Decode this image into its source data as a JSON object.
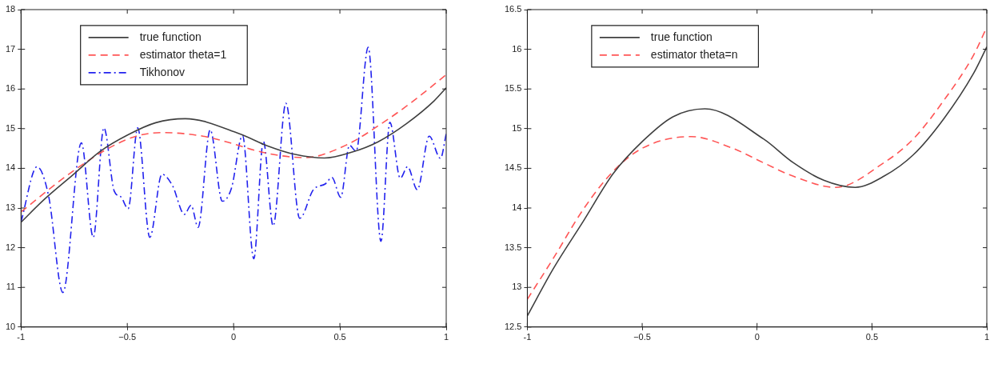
{
  "chart_data": [
    {
      "type": "line",
      "xlim": [
        -1,
        1
      ],
      "ylim": [
        10,
        18
      ],
      "xticks": [
        -1,
        {
          "value": -0.5,
          "label": "−0.5"
        },
        0,
        0.5,
        1
      ],
      "yticks": [
        10,
        11,
        12,
        13,
        14,
        15,
        16,
        17,
        18
      ],
      "grid": false,
      "legend": "top left",
      "marker": "none",
      "series": [
        {
          "name": "true function",
          "color": "#404040",
          "line_style": "solid",
          "x": [
            -1,
            -0.888,
            -0.757,
            -0.627,
            -0.495,
            -0.366,
            -0.227,
            0.028,
            0.158,
            0.29,
            0.427,
            0.552,
            0.68,
            0.814,
            0.943,
            1
          ],
          "values": [
            12.64,
            13.23,
            13.83,
            14.43,
            14.85,
            15.15,
            15.25,
            14.87,
            14.57,
            14.35,
            14.26,
            14.4,
            14.67,
            15.13,
            15.7,
            16.03
          ]
        },
        {
          "name": "estimator theta=1",
          "color": "#ff5555",
          "line_style": "dashed",
          "x": [
            -1,
            -0.773,
            -0.583,
            -0.458,
            -0.333,
            -0.144,
            -0.042,
            0.148,
            0.337,
            0.527,
            0.716,
            0.841,
            1
          ],
          "values": [
            12.9,
            13.86,
            14.52,
            14.81,
            14.9,
            14.81,
            14.68,
            14.39,
            14.27,
            14.58,
            15.2,
            15.68,
            16.36
          ]
        },
        {
          "name": "Tikhonov",
          "color": "#2222ee",
          "line_style": "dashdot",
          "x": [
            -1,
            -0.924,
            -0.87,
            -0.803,
            -0.716,
            -0.66,
            -0.61,
            -0.561,
            -0.53,
            -0.496,
            -0.451,
            -0.394,
            -0.337,
            -0.288,
            -0.231,
            -0.2,
            -0.167,
            -0.11,
            -0.053,
            -0.01,
            0.042,
            0.095,
            0.14,
            0.186,
            0.246,
            0.311,
            0.375,
            0.432,
            0.462,
            0.504,
            0.545,
            0.576,
            0.633,
            0.693,
            0.735,
            0.784,
            0.818,
            0.864,
            0.92,
            0.973,
            1
          ],
          "values": [
            12.65,
            14.04,
            13.3,
            10.87,
            14.64,
            12.26,
            15.02,
            13.42,
            13.28,
            12.98,
            15.02,
            12.26,
            13.85,
            13.57,
            12.84,
            13.07,
            12.51,
            14.97,
            13.17,
            13.5,
            14.83,
            11.72,
            14.68,
            12.55,
            15.64,
            12.74,
            13.46,
            13.61,
            13.77,
            13.27,
            14.58,
            14.43,
            17.05,
            12.16,
            15.16,
            13.75,
            14.04,
            13.46,
            14.81,
            14.25,
            14.87
          ]
        }
      ]
    },
    {
      "type": "line",
      "xlim": [
        -1,
        1
      ],
      "ylim": [
        12.5,
        16.5
      ],
      "xticks": [
        -1,
        {
          "value": -0.5,
          "label": "−0.5"
        },
        0,
        0.5,
        1
      ],
      "yticks": [
        12.5,
        13,
        13.5,
        14,
        14.5,
        15,
        15.5,
        16,
        16.5
      ],
      "grid": false,
      "legend": "top left",
      "marker": "none",
      "series": [
        {
          "name": "true function",
          "color": "#404040",
          "line_style": "solid",
          "x": [
            -1,
            -0.888,
            -0.757,
            -0.627,
            -0.495,
            -0.366,
            -0.227,
            0.028,
            0.158,
            0.29,
            0.427,
            0.552,
            0.68,
            0.814,
            0.943,
            1
          ],
          "values": [
            12.64,
            13.23,
            13.83,
            14.43,
            14.85,
            15.15,
            15.25,
            14.87,
            14.57,
            14.35,
            14.26,
            14.4,
            14.67,
            15.13,
            15.7,
            16.03
          ]
        },
        {
          "name": "estimator theta=n",
          "color": "#ff5555",
          "line_style": "dashed",
          "x": [
            -1,
            -0.888,
            -0.757,
            -0.627,
            -0.495,
            -0.287,
            -0.104,
            0.028,
            0.158,
            0.342,
            0.552,
            0.68,
            0.814,
            0.943,
            1
          ],
          "values": [
            12.85,
            13.36,
            13.98,
            14.46,
            14.76,
            14.9,
            14.75,
            14.57,
            14.4,
            14.26,
            14.57,
            14.87,
            15.36,
            15.93,
            16.28
          ]
        }
      ]
    }
  ]
}
